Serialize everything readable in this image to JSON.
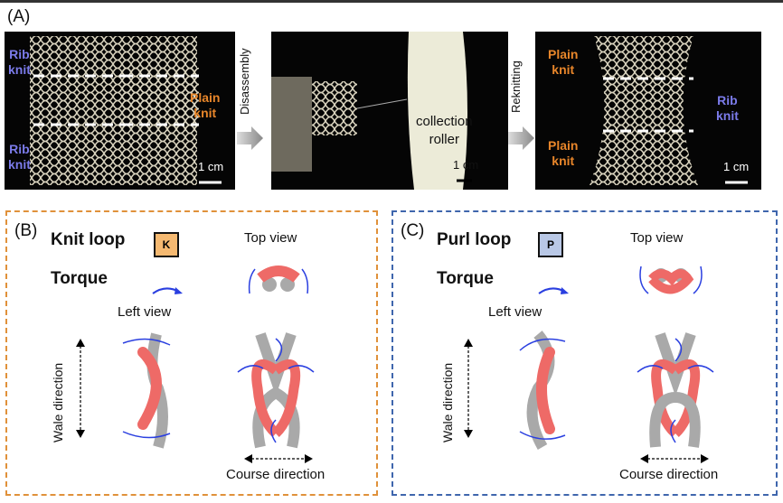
{
  "panel_a": {
    "label": "(A)",
    "photo1": {
      "top_left": "Rib\nknit",
      "right": "Plain\nknit",
      "bottom_left": "Rib\nknit",
      "scale": "1 cm"
    },
    "step1": "Disassembly",
    "photo2": {
      "roller": "collection\nroller",
      "scale": "1 cm"
    },
    "step2": "Reknitting",
    "photo3": {
      "top_left": "Plain\nknit",
      "right": "Rib\nknit",
      "bottom_left": "Plain\nknit",
      "scale": "1 cm"
    }
  },
  "panel_b": {
    "label": "(B)",
    "title": "Knit loop",
    "badge": "K",
    "torque": "Torque",
    "top_view": "Top view",
    "left_view": "Left view",
    "wale": "Wale direction",
    "course": "Course direction"
  },
  "panel_c": {
    "label": "(C)",
    "title": "Purl loop",
    "badge": "P",
    "torque": "Torque",
    "top_view": "Top view",
    "left_view": "Left view",
    "wale": "Wale direction",
    "course": "Course direction"
  },
  "colors": {
    "rib": "#7b7bea",
    "plain": "#e8862a",
    "knit_border": "#e0913a",
    "purl_border": "#3f66ad",
    "knit_badge": "#f5b971",
    "purl_badge": "#b9c8e6",
    "loop_red": "#ee6a67",
    "loop_gray": "#a9a9a9",
    "arrow_blue": "#2a3fe0"
  }
}
